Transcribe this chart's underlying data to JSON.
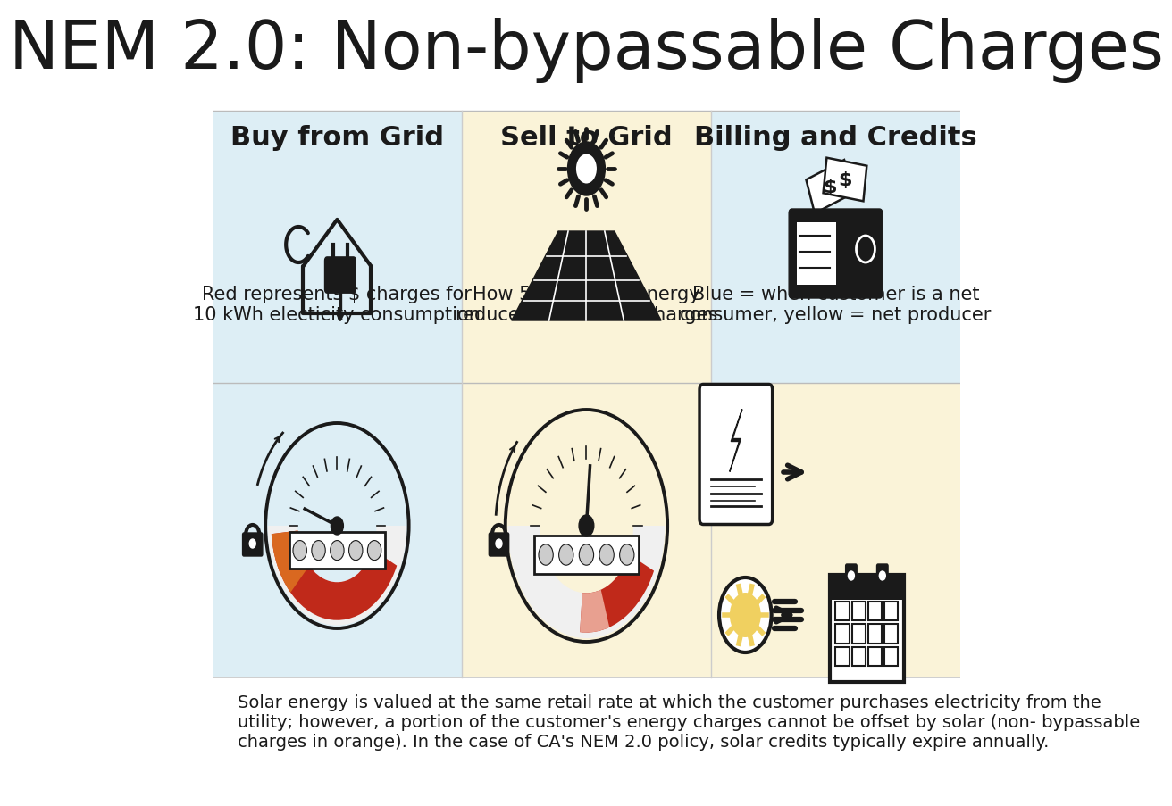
{
  "title": "NEM 2.0: Non-bypassable Charges",
  "title_fontsize": 54,
  "title_color": "#1a1a1a",
  "bg_color": "#ffffff",
  "col1_bg": "#ddeef5",
  "col2_bg": "#faf3d8",
  "col3_bg_top": "#ddeef5",
  "col3_bg_bot": "#faf3d8",
  "col_headers": [
    "Buy from Grid",
    "Sell to Grid",
    "Billing and Credits"
  ],
  "col_header_fontsize": 22,
  "col_desc": [
    "Red represents $ charges for\n10 kWh electicity consumption",
    "How 5 kWh solar energy\nreduces customer's charges",
    "Blue = when customer is a net\nconsumer, yellow = net producer"
  ],
  "col_desc_fontsize": 15,
  "footer_text": "Solar energy is valued at the same retail rate at which the customer purchases electricity from the\nutility; however, a portion of the customer's energy charges cannot be offset by solar (non- bypassable\ncharges in orange). In the case of CA's NEM 2.0 policy, solar credits typically expire annually.",
  "footer_fontsize": 14,
  "ic": "#1a1a1a",
  "gauge_red": "#c0291a",
  "gauge_orange": "#d96820",
  "gauge_pink": "#e8a090",
  "sun_yellow": "#f0d060",
  "divider_color": "#bbbbbb",
  "col_divider": "#cccccc"
}
